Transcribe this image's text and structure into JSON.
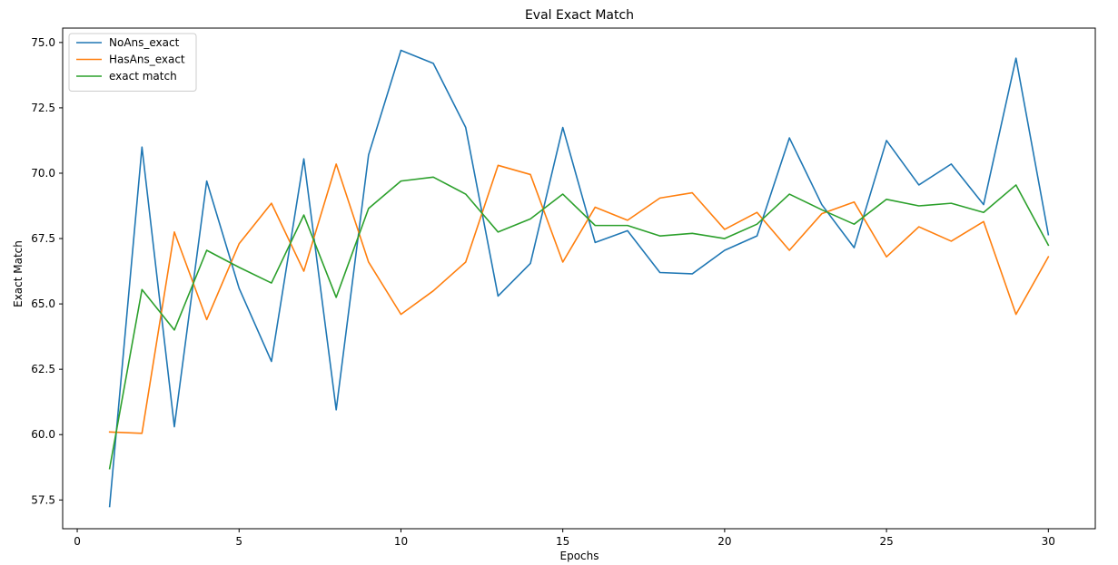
{
  "chart_data": {
    "type": "line",
    "title": "Eval Exact Match",
    "xlabel": "Epochs",
    "ylabel": "Exact Match",
    "xlim": [
      -0.45,
      31.45
    ],
    "ylim": [
      56.4,
      75.55
    ],
    "xticks": [
      0,
      5,
      10,
      15,
      20,
      25,
      30
    ],
    "yticks": [
      57.5,
      60.0,
      62.5,
      65.0,
      67.5,
      70.0,
      72.5,
      75.0
    ],
    "xtick_labels": [
      "0",
      "5",
      "10",
      "15",
      "20",
      "25",
      "30"
    ],
    "ytick_labels": [
      "57.5",
      "60.0",
      "62.5",
      "65.0",
      "67.5",
      "70.0",
      "72.5",
      "75.0"
    ],
    "grid": false,
    "legend_position": "top-left",
    "x": [
      1,
      2,
      3,
      4,
      5,
      6,
      7,
      8,
      9,
      10,
      11,
      12,
      13,
      14,
      15,
      16,
      17,
      18,
      19,
      20,
      21,
      22,
      23,
      24,
      25,
      26,
      27,
      28,
      29,
      30
    ],
    "series": [
      {
        "name": "NoAns_exact",
        "color": "#1f77b4",
        "values": [
          57.25,
          71.0,
          60.3,
          69.7,
          65.6,
          62.8,
          70.55,
          60.95,
          70.7,
          74.7,
          74.2,
          71.75,
          65.3,
          66.55,
          71.75,
          67.35,
          67.8,
          66.2,
          66.15,
          67.05,
          67.6,
          71.35,
          68.8,
          67.15,
          71.25,
          69.55,
          70.35,
          68.8,
          74.4,
          67.65
        ]
      },
      {
        "name": "HasAns_exact",
        "color": "#ff7f0e",
        "values": [
          60.1,
          60.05,
          67.75,
          64.4,
          67.3,
          68.85,
          66.25,
          70.35,
          66.6,
          64.6,
          65.5,
          66.6,
          70.3,
          69.95,
          66.6,
          68.7,
          68.2,
          69.05,
          69.25,
          67.85,
          68.5,
          67.05,
          68.45,
          68.9,
          66.8,
          67.95,
          67.4,
          68.15,
          64.6,
          66.8
        ]
      },
      {
        "name": "exact match",
        "color": "#2ca02c",
        "values": [
          58.7,
          65.55,
          64.0,
          67.05,
          66.4,
          65.8,
          68.4,
          65.25,
          68.65,
          69.7,
          69.85,
          69.2,
          67.75,
          68.25,
          69.2,
          68.0,
          68.0,
          67.6,
          67.7,
          67.5,
          68.05,
          69.2,
          68.6,
          68.05,
          69.0,
          68.75,
          68.85,
          68.5,
          69.55,
          67.25
        ]
      }
    ]
  }
}
